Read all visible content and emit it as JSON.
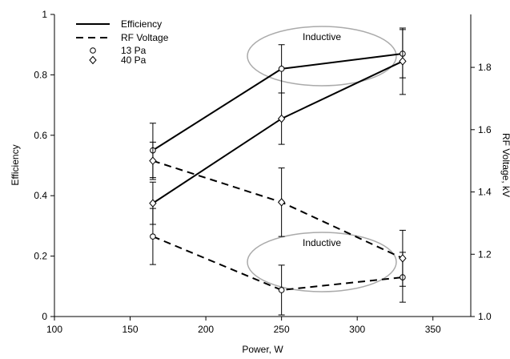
{
  "chart_data": {
    "type": "line",
    "xlabel": "Power, W",
    "ylabel": "Efficiency",
    "y2label": "RF Voltage, kV",
    "xlim": [
      100,
      375
    ],
    "xticks": [
      100,
      150,
      200,
      250,
      300,
      350
    ],
    "ylim": [
      0,
      1
    ],
    "yticks": [
      0,
      0.2,
      0.4,
      0.6,
      0.8,
      1
    ],
    "y2lim": [
      1.0,
      1.97
    ],
    "y2ticks": [
      {
        "value": 1.0,
        "label": "1.0"
      },
      1.2,
      1.4,
      1.6,
      1.8
    ],
    "grid": false,
    "legend": {
      "corner": "top-left",
      "lines": [
        {
          "label": "Efficiency",
          "dash": "none"
        },
        {
          "label": "RF Voltage",
          "dash": "9 6"
        }
      ],
      "markers": [
        {
          "label": "13 Pa",
          "shape": "circle"
        },
        {
          "label": "40 Pa",
          "shape": "diamond"
        }
      ]
    },
    "x": [
      165,
      250,
      330
    ],
    "series": [
      {
        "line": 0,
        "marker": 0,
        "axis": "y",
        "color": "#000000",
        "values": [
          0.55,
          0.82,
          0.87
        ],
        "errors": [
          0.09,
          0.08,
          0.08
        ]
      },
      {
        "line": 0,
        "marker": 1,
        "axis": "y",
        "color": "#000000",
        "values": [
          0.375,
          0.655,
          0.845
        ],
        "errors": [
          0.07,
          0.085,
          0.11
        ]
      },
      {
        "line": 1,
        "marker": 0,
        "axis": "y2",
        "color": "#000000",
        "values": [
          1.257,
          1.085,
          1.126
        ],
        "errors": [
          0.09,
          0.08,
          0.08
        ]
      },
      {
        "line": 1,
        "marker": 1,
        "axis": "y2",
        "color": "#000000",
        "values": [
          1.5,
          1.367,
          1.187
        ],
        "errors": [
          0.06,
          0.11,
          0.09
        ]
      }
    ],
    "annotations": [
      {
        "text": "Inductive"
      },
      {
        "text": "Inductive"
      }
    ]
  }
}
